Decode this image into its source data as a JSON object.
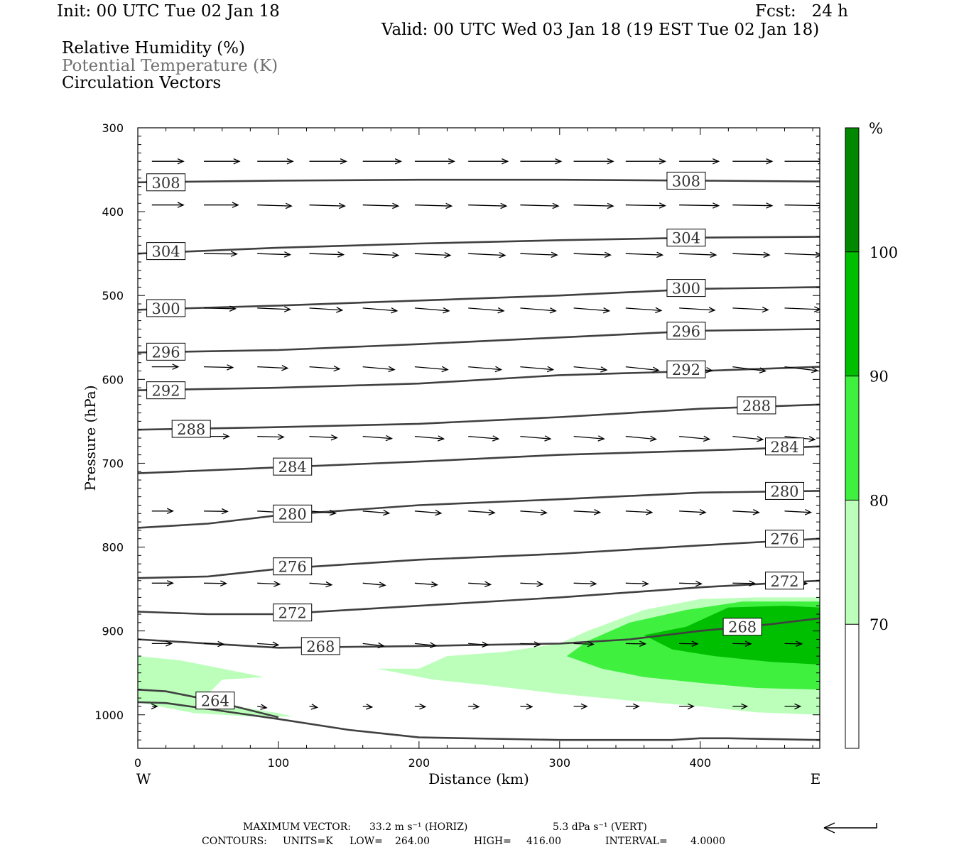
{
  "header": {
    "init": "Init: 00 UTC Tue 02 Jan 18",
    "fcst": "Fcst:   24 h",
    "valid": "Valid: 00 UTC Wed 03 Jan 18 (19 EST Tue 02 Jan 18)",
    "field1": "Relative Humidity (%)",
    "field2": "Potential Temperature (K)",
    "field3": "Circulation Vectors"
  },
  "footer": {
    "max_vector_label": "MAXIMUM VECTOR:",
    "max_horiz": "33.2 m s⁻¹ (HORIZ)",
    "max_vert": "5.3 dPa s⁻¹ (VERT)",
    "contours_label": "CONTOURS:",
    "units": "UNITS=K",
    "low_label": "LOW=",
    "low_value": "264.00",
    "high_label": "HIGH=",
    "high_value": "416.00",
    "interval_label": "INTERVAL=",
    "interval_value": "4.0000"
  },
  "colors": {
    "rh_70": "#bbffbb",
    "rh_80": "#3ff03f",
    "rh_90": "#00bf00",
    "rh_100": "#008800",
    "theta": "#404040",
    "vector": "#000000"
  },
  "chart_data": {
    "type": "cross-section",
    "xlabel": "Distance (km)",
    "ylabel": "Pressure (hPa)",
    "xlim": [
      0,
      485
    ],
    "ylim": [
      1040,
      300
    ],
    "x_ticks": [
      0,
      100,
      200,
      300,
      400
    ],
    "y_ticks": [
      300,
      400,
      500,
      600,
      700,
      800,
      900,
      1000
    ],
    "end_labels": {
      "left": "W",
      "right": "E"
    },
    "colorbar": {
      "unit": "%",
      "levels": [
        70,
        80,
        90,
        100
      ],
      "colors": [
        "#ffffff",
        "#bbffbb",
        "#3ff03f",
        "#00bf00",
        "#008800"
      ]
    },
    "rh_regions": [
      {
        "level": 70,
        "points": [
          [
            0,
            930
          ],
          [
            30,
            935
          ],
          [
            60,
            945
          ],
          [
            90,
            955
          ],
          [
            60,
            958
          ],
          [
            50,
            975
          ],
          [
            70,
            990
          ],
          [
            100,
            998
          ],
          [
            110,
            1002
          ],
          [
            80,
            1002
          ],
          [
            40,
            998
          ],
          [
            0,
            985
          ],
          [
            0,
            930
          ],
          [
            0,
            930
          ]
        ]
      },
      {
        "level": 70,
        "points": [
          [
            170,
            945
          ],
          [
            200,
            945
          ],
          [
            220,
            930
          ],
          [
            260,
            925
          ],
          [
            300,
            915
          ],
          [
            320,
            900
          ],
          [
            360,
            875
          ],
          [
            400,
            862
          ],
          [
            440,
            860
          ],
          [
            485,
            860
          ],
          [
            485,
            1000
          ],
          [
            440,
            997
          ],
          [
            400,
            990
          ],
          [
            350,
            983
          ],
          [
            300,
            975
          ],
          [
            250,
            965
          ],
          [
            210,
            958
          ],
          [
            170,
            945
          ]
        ]
      },
      {
        "level": 80,
        "points": [
          [
            305,
            930
          ],
          [
            320,
            912
          ],
          [
            350,
            890
          ],
          [
            390,
            875
          ],
          [
            430,
            865
          ],
          [
            485,
            865
          ],
          [
            485,
            970
          ],
          [
            440,
            968
          ],
          [
            400,
            962
          ],
          [
            360,
            955
          ],
          [
            330,
            945
          ],
          [
            305,
            930
          ]
        ]
      },
      {
        "level": 90,
        "points": [
          [
            360,
            905
          ],
          [
            390,
            895
          ],
          [
            420,
            872
          ],
          [
            460,
            870
          ],
          [
            485,
            872
          ],
          [
            485,
            940
          ],
          [
            450,
            937
          ],
          [
            410,
            930
          ],
          [
            380,
            922
          ],
          [
            360,
            905
          ]
        ]
      }
    ],
    "theta_contours": [
      {
        "value": 308,
        "points": [
          [
            0,
            365
          ],
          [
            100,
            363
          ],
          [
            200,
            362
          ],
          [
            300,
            362
          ],
          [
            400,
            363
          ],
          [
            485,
            364
          ]
        ],
        "labels": [
          [
            20,
            365
          ],
          [
            390,
            363
          ]
        ]
      },
      {
        "value": 304,
        "points": [
          [
            0,
            450
          ],
          [
            100,
            443
          ],
          [
            200,
            438
          ],
          [
            300,
            434
          ],
          [
            400,
            431
          ],
          [
            485,
            430
          ]
        ],
        "labels": [
          [
            20,
            447
          ],
          [
            390,
            431
          ]
        ]
      },
      {
        "value": 300,
        "points": [
          [
            0,
            517
          ],
          [
            100,
            512
          ],
          [
            200,
            506
          ],
          [
            300,
            500
          ],
          [
            400,
            492
          ],
          [
            485,
            490
          ]
        ],
        "labels": [
          [
            20,
            515
          ],
          [
            390,
            491
          ]
        ]
      },
      {
        "value": 296,
        "points": [
          [
            0,
            568
          ],
          [
            100,
            565
          ],
          [
            200,
            558
          ],
          [
            300,
            550
          ],
          [
            400,
            542
          ],
          [
            485,
            540
          ]
        ],
        "labels": [
          [
            20,
            567
          ],
          [
            390,
            542
          ]
        ]
      },
      {
        "value": 292,
        "points": [
          [
            0,
            613
          ],
          [
            100,
            610
          ],
          [
            200,
            605
          ],
          [
            300,
            595
          ],
          [
            400,
            590
          ],
          [
            485,
            585
          ]
        ],
        "labels": [
          [
            20,
            613
          ],
          [
            390,
            588
          ]
        ]
      },
      {
        "value": 288,
        "points": [
          [
            0,
            660
          ],
          [
            100,
            657
          ],
          [
            200,
            653
          ],
          [
            300,
            645
          ],
          [
            400,
            635
          ],
          [
            485,
            630
          ]
        ],
        "labels": [
          [
            38,
            659
          ],
          [
            440,
            631
          ]
        ]
      },
      {
        "value": 284,
        "points": [
          [
            0,
            712
          ],
          [
            100,
            705
          ],
          [
            200,
            698
          ],
          [
            300,
            690
          ],
          [
            400,
            685
          ],
          [
            485,
            680
          ]
        ],
        "labels": [
          [
            110,
            704
          ],
          [
            460,
            680
          ]
        ]
      },
      {
        "value": 280,
        "points": [
          [
            0,
            777
          ],
          [
            50,
            772
          ],
          [
            100,
            762
          ],
          [
            200,
            750
          ],
          [
            300,
            743
          ],
          [
            400,
            735
          ],
          [
            485,
            733
          ]
        ],
        "labels": [
          [
            110,
            760
          ],
          [
            460,
            733
          ]
        ]
      },
      {
        "value": 276,
        "points": [
          [
            0,
            837
          ],
          [
            50,
            835
          ],
          [
            100,
            826
          ],
          [
            200,
            815
          ],
          [
            300,
            808
          ],
          [
            400,
            798
          ],
          [
            485,
            790
          ]
        ],
        "labels": [
          [
            110,
            823
          ],
          [
            460,
            790
          ]
        ]
      },
      {
        "value": 272,
        "points": [
          [
            0,
            877
          ],
          [
            50,
            880
          ],
          [
            100,
            880
          ],
          [
            150,
            875
          ],
          [
            200,
            870
          ],
          [
            300,
            860
          ],
          [
            400,
            848
          ],
          [
            485,
            840
          ]
        ],
        "labels": [
          [
            110,
            878
          ],
          [
            460,
            840
          ]
        ]
      },
      {
        "value": 268,
        "points": [
          [
            0,
            910
          ],
          [
            50,
            915
          ],
          [
            100,
            920
          ],
          [
            200,
            918
          ],
          [
            300,
            915
          ],
          [
            350,
            910
          ],
          [
            400,
            900
          ],
          [
            450,
            892
          ],
          [
            485,
            885
          ]
        ],
        "labels": [
          [
            130,
            918
          ],
          [
            430,
            895
          ]
        ]
      },
      {
        "value": 264,
        "points": [
          [
            0,
            970
          ],
          [
            20,
            972
          ],
          [
            50,
            982
          ],
          [
            100,
            1003
          ]
        ],
        "labels": [
          [
            55,
            983
          ]
        ]
      },
      {
        "value": 264,
        "points": [
          [
            0,
            985
          ],
          [
            20,
            986
          ],
          [
            50,
            993
          ],
          [
            100,
            1005
          ],
          [
            150,
            1018
          ],
          [
            200,
            1027
          ],
          [
            300,
            1030
          ],
          [
            380,
            1030
          ],
          [
            400,
            1028
          ],
          [
            420,
            1028
          ],
          [
            485,
            1030
          ]
        ],
        "labels": []
      }
    ],
    "vector_rows": [
      {
        "p": 340,
        "x": [
          10,
          47,
          85,
          122,
          160,
          197,
          235,
          272,
          310,
          347,
          385,
          423,
          460
        ],
        "u": [
          24,
          27,
          27,
          28,
          29,
          30,
          30,
          31,
          30,
          30,
          30,
          30,
          30
        ],
        "w": [
          0,
          0,
          0,
          0,
          0,
          0,
          0,
          0,
          0,
          0,
          0,
          0,
          0
        ]
      },
      {
        "p": 392,
        "x": [
          10,
          47,
          85,
          122,
          160,
          197,
          235,
          272,
          310,
          347,
          385,
          423,
          460
        ],
        "u": [
          24,
          26,
          26,
          27,
          27,
          28,
          29,
          29,
          30,
          30,
          30,
          30,
          30
        ],
        "w": [
          0,
          0,
          0.3,
          0.3,
          0.3,
          0.3,
          0.3,
          0.3,
          0.3,
          0.2,
          0.2,
          0.2,
          0.2
        ]
      },
      {
        "p": 450,
        "x": [
          10,
          47,
          85,
          122,
          160,
          197,
          235,
          272,
          310,
          347,
          385,
          423,
          460
        ],
        "u": [
          22,
          25,
          25,
          26,
          27,
          27,
          28,
          28,
          28,
          28,
          28,
          28,
          28
        ],
        "w": [
          0,
          0.1,
          0.3,
          0.3,
          0.5,
          0.5,
          0.5,
          0.4,
          0.4,
          0.4,
          0.4,
          0.4,
          0.4
        ]
      },
      {
        "p": 515,
        "x": [
          10,
          47,
          85,
          122,
          160,
          197,
          235,
          272,
          310,
          347,
          385,
          423,
          460
        ],
        "u": [
          22,
          24,
          25,
          25,
          26,
          26,
          27,
          27,
          27,
          27,
          27,
          27,
          27
        ],
        "w": [
          0,
          0.2,
          0.4,
          0.6,
          0.8,
          0.8,
          0.8,
          0.8,
          0.8,
          0.7,
          0.6,
          0.5,
          0.4
        ]
      },
      {
        "p": 585,
        "x": [
          10,
          47,
          85,
          122,
          160,
          197,
          235,
          272,
          310,
          347,
          385,
          423,
          460
        ],
        "u": [
          20,
          22,
          23,
          23,
          24,
          25,
          25,
          25,
          25,
          25,
          25,
          25,
          25
        ],
        "w": [
          0,
          0.2,
          0.4,
          0.6,
          0.8,
          0.8,
          0.8,
          0.8,
          0.9,
          1.0,
          1.1,
          1.2,
          1.1
        ]
      },
      {
        "p": 668,
        "x": [
          47,
          85,
          122,
          160,
          197,
          235,
          272,
          310,
          347,
          385,
          423,
          460
        ],
        "u": [
          19,
          20,
          21,
          22,
          22,
          23,
          23,
          23,
          23,
          23,
          23,
          23
        ],
        "w": [
          0,
          0.2,
          0.4,
          0.6,
          0.7,
          0.7,
          0.7,
          0.7,
          0.8,
          0.8,
          0.9,
          0.9
        ]
      },
      {
        "p": 757,
        "x": [
          10,
          47,
          85,
          122,
          160,
          197,
          235,
          272,
          310,
          347,
          385,
          423,
          460
        ],
        "u": [
          16,
          18,
          19,
          20,
          20,
          20,
          20,
          20,
          20,
          20,
          20,
          20,
          20
        ],
        "w": [
          0,
          0.1,
          0.4,
          0.6,
          0.6,
          0.6,
          0.5,
          0.5,
          0.4,
          0.4,
          0.4,
          0.4,
          0.4
        ]
      },
      {
        "p": 843,
        "x": [
          10,
          47,
          85,
          122,
          160,
          197,
          235,
          272,
          310,
          347,
          385,
          423,
          460
        ],
        "u": [
          16,
          17,
          17,
          17,
          17,
          17,
          17,
          17,
          17,
          17,
          17,
          17,
          17
        ],
        "w": [
          0,
          0.1,
          0.3,
          0.5,
          0.6,
          0.5,
          0.4,
          0.3,
          0.2,
          0.2,
          0.2,
          0.1,
          0.1
        ]
      },
      {
        "p": 915,
        "x": [
          10,
          47,
          85,
          122,
          160,
          197,
          235,
          272,
          310,
          347,
          385,
          423,
          460
        ],
        "u": [
          15,
          15,
          16,
          16,
          16,
          16,
          15,
          15,
          15,
          15,
          14,
          14,
          13
        ],
        "w": [
          0,
          0.2,
          0.4,
          0.6,
          0.7,
          0.6,
          0.4,
          0.3,
          0.2,
          0.1,
          0.1,
          0.1,
          0.1
        ]
      },
      {
        "p": 990,
        "x": [
          10,
          47,
          85,
          122,
          160,
          197,
          235,
          272,
          310,
          347,
          385,
          423,
          460
        ],
        "u": [
          4,
          6,
          7,
          6,
          7,
          8,
          8,
          9,
          10,
          10,
          11,
          11,
          12
        ],
        "w": [
          0,
          0.3,
          0.4,
          0.3,
          0.2,
          0.1,
          0.1,
          0.1,
          0,
          0,
          0,
          0,
          0
        ]
      }
    ]
  }
}
